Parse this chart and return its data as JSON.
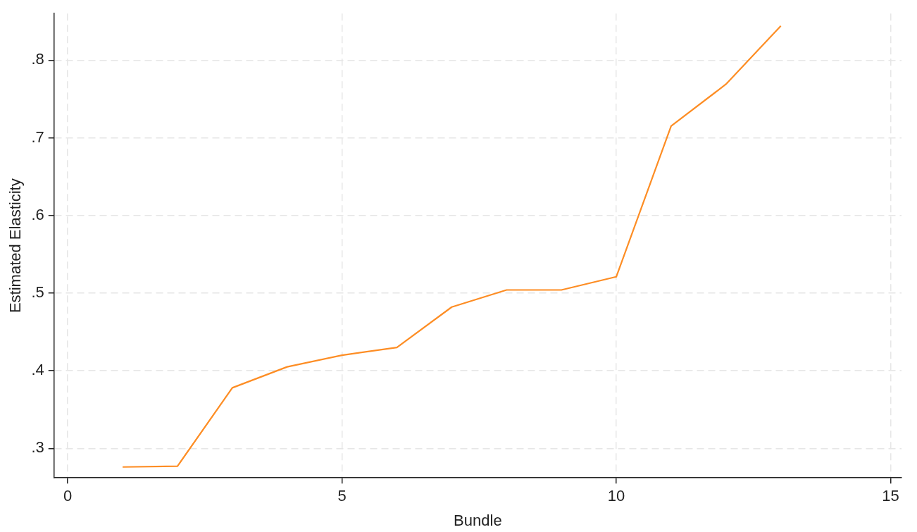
{
  "chart_data": {
    "type": "line",
    "xlabel": "Bundle",
    "ylabel": "Estimated Elasticity",
    "x": [
      1,
      2,
      3,
      4,
      5,
      6,
      7,
      8,
      9,
      10,
      11,
      12,
      13
    ],
    "series": [
      {
        "color": "#fd8d24",
        "values": [
          0.276,
          0.277,
          0.378,
          0.405,
          0.42,
          0.43,
          0.482,
          0.504,
          0.504,
          0.521,
          0.715,
          0.769,
          0.844
        ]
      }
    ],
    "xlim": [
      -0.25,
      15.2
    ],
    "xticks": [
      0,
      5,
      10,
      15
    ],
    "ylim": [
      0.262,
      0.86
    ],
    "yticks": [
      {
        "value": 0.3,
        "label": ".3"
      },
      {
        "value": 0.4,
        "label": ".4"
      },
      {
        "value": 0.5,
        "label": ".5"
      },
      {
        "value": 0.6,
        "label": ".6"
      },
      {
        "value": 0.7,
        "label": ".7"
      },
      {
        "value": 0.8,
        "label": ".8"
      }
    ],
    "grid": true,
    "legend": false,
    "marker": "none",
    "line_style": "solid"
  }
}
